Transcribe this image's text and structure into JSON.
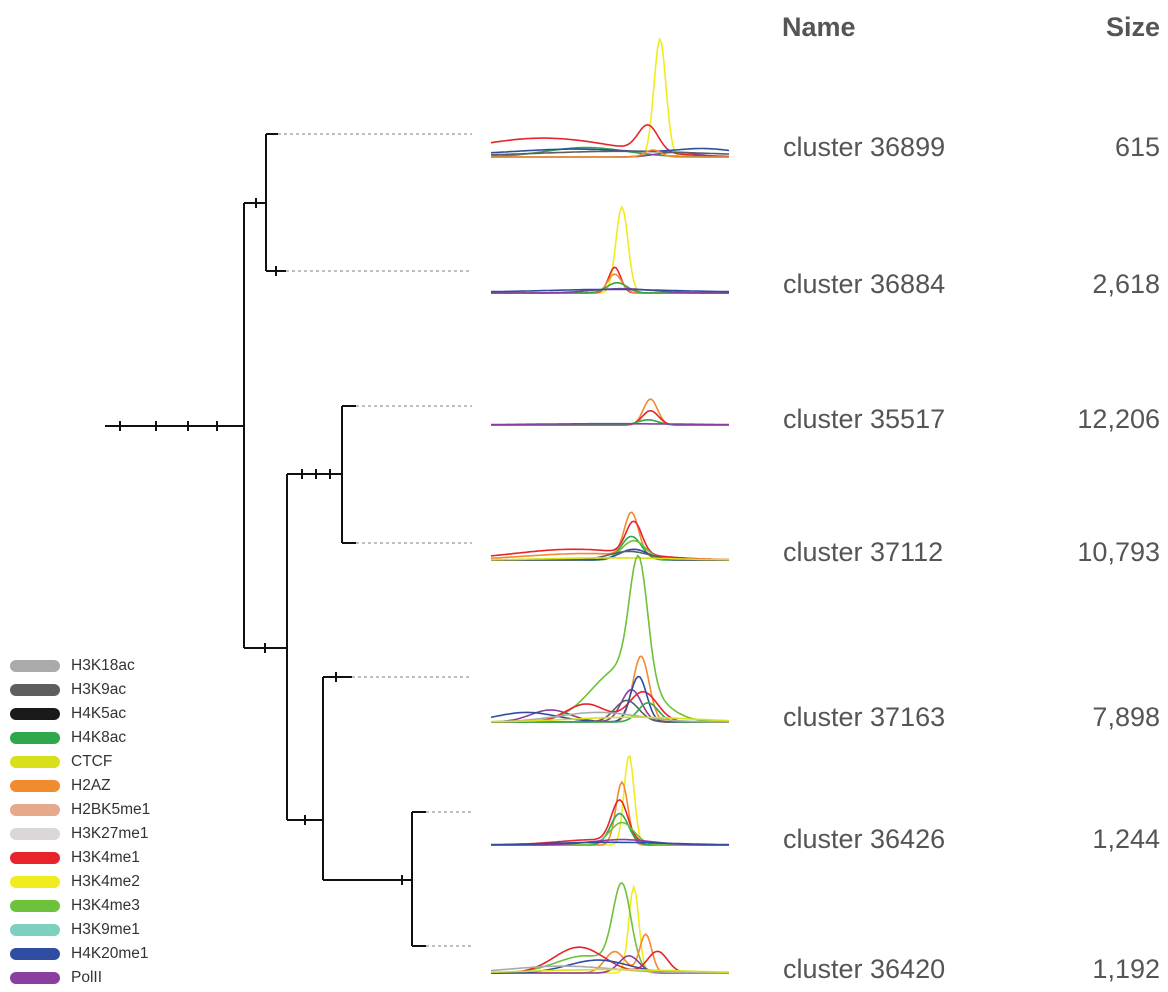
{
  "headers": {
    "name": "Name",
    "size": "Size"
  },
  "clusters": [
    {
      "name": "cluster 36899",
      "size": "615"
    },
    {
      "name": "cluster 36884",
      "size": "2,618"
    },
    {
      "name": "cluster 35517",
      "size": "12,206"
    },
    {
      "name": "cluster 37112",
      "size": "10,793"
    },
    {
      "name": "cluster 37163",
      "size": "7,898"
    },
    {
      "name": "cluster 36426",
      "size": "1,244"
    },
    {
      "name": "cluster 36420",
      "size": "1,192"
    }
  ],
  "legend": [
    {
      "label": "H3K18ac",
      "color": "#aaaaaa"
    },
    {
      "label": "H3K9ac",
      "color": "#5e5e5e"
    },
    {
      "label": "H4K5ac",
      "color": "#1a1a1a"
    },
    {
      "label": "H4K8ac",
      "color": "#2ea84a"
    },
    {
      "label": "CTCF",
      "color": "#d8e01c"
    },
    {
      "label": "H2AZ",
      "color": "#f28a30"
    },
    {
      "label": "H2BK5me1",
      "color": "#e6a98c"
    },
    {
      "label": "H3K27me1",
      "color": "#dcd7d7"
    },
    {
      "label": "H3K4me1",
      "color": "#e8242b"
    },
    {
      "label": "H3K4me2",
      "color": "#f0ec1e"
    },
    {
      "label": "H3K4me3",
      "color": "#6cc23a"
    },
    {
      "label": "H3K9me1",
      "color": "#7dcfbe"
    },
    {
      "label": "H4K20me1",
      "color": "#2f4ea1"
    },
    {
      "label": "PolII",
      "color": "#8a3ea0"
    }
  ]
}
